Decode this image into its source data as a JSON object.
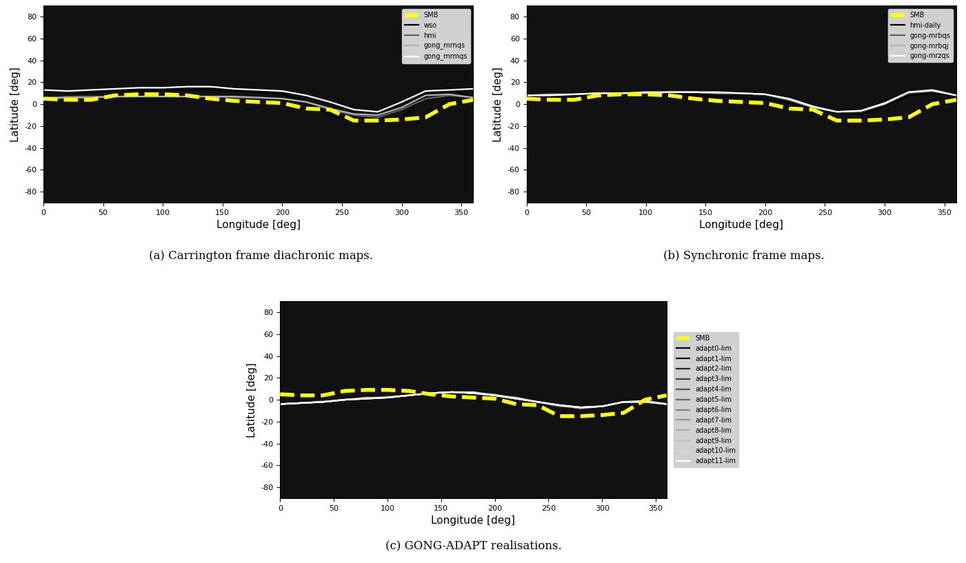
{
  "chart_data": [
    {
      "type": "line",
      "caption": "(a) Carrington frame diachronic maps.",
      "x_label": "Longitude [deg]",
      "y_label": "Latitude [deg]",
      "xlim": [
        0,
        360
      ],
      "ylim": [
        -90,
        90
      ],
      "xticks": [
        0,
        50,
        100,
        150,
        200,
        250,
        300,
        350
      ],
      "yticks": [
        -80,
        -60,
        -40,
        -20,
        0,
        20,
        40,
        60,
        80
      ],
      "legend": "upper right",
      "x": [
        0,
        20,
        40,
        60,
        80,
        100,
        120,
        140,
        160,
        180,
        200,
        220,
        240,
        260,
        280,
        300,
        320,
        340,
        360
      ],
      "series": [
        {
          "name": "SMB",
          "color": "#ffff00",
          "line_style": "dashed",
          "values": [
            5,
            4,
            4,
            8,
            9,
            9,
            8,
            5,
            3,
            2,
            1,
            -4,
            -5,
            -15,
            -15,
            -14,
            -12,
            0,
            4
          ]
        },
        {
          "name": "wso",
          "color": "#000000",
          "line_style": "solid",
          "values": [
            5,
            8,
            11,
            12,
            12,
            13,
            13,
            13,
            12,
            11,
            9,
            3,
            -10,
            -16,
            -17,
            -14,
            10,
            15,
            5
          ]
        },
        {
          "name": "hmi",
          "color": "#606060",
          "line_style": "solid",
          "values": [
            6,
            7,
            7,
            7,
            7,
            7,
            7,
            7,
            6,
            6,
            5,
            2,
            -5,
            -10,
            -12,
            -5,
            5,
            8,
            6
          ]
        },
        {
          "name": "gong_mrnqs",
          "color": "#b0b0b0",
          "line_style": "solid",
          "values": [
            5,
            6,
            6,
            7,
            7,
            7,
            7,
            7,
            7,
            6,
            5,
            2,
            -4,
            -9,
            -10,
            -3,
            8,
            9,
            6
          ]
        },
        {
          "name": "gong_mrmqs",
          "color": "#ffffff",
          "line_style": "solid",
          "values": [
            13,
            12,
            13,
            14,
            15,
            15,
            16,
            16,
            14,
            13,
            12,
            8,
            2,
            -5,
            -7,
            2,
            12,
            13,
            14
          ]
        }
      ]
    },
    {
      "type": "line",
      "caption": "(b) Synchronic frame maps.",
      "x_label": "Longitude [deg]",
      "y_label": "Latitude [deg]",
      "xlim": [
        0,
        360
      ],
      "ylim": [
        -90,
        90
      ],
      "xticks": [
        0,
        50,
        100,
        150,
        200,
        250,
        300,
        350
      ],
      "yticks": [
        -80,
        -60,
        -40,
        -20,
        0,
        20,
        40,
        60,
        80
      ],
      "legend": "upper right",
      "x": [
        0,
        20,
        40,
        60,
        80,
        100,
        120,
        140,
        160,
        180,
        200,
        220,
        240,
        260,
        280,
        300,
        320,
        340,
        360
      ],
      "series": [
        {
          "name": "SMB",
          "color": "#ffff00",
          "line_style": "dashed",
          "values": [
            5,
            4,
            4,
            8,
            9,
            9,
            8,
            5,
            3,
            2,
            1,
            -4,
            -5,
            -15,
            -15,
            -14,
            -12,
            0,
            4
          ]
        },
        {
          "name": "hmi-daily",
          "color": "#000000",
          "line_style": "solid",
          "values": [
            6,
            7,
            7,
            9,
            8,
            8,
            8,
            8,
            7,
            6,
            5,
            1,
            -4,
            -8,
            -9,
            -2,
            8,
            10,
            8
          ]
        },
        {
          "name": "gong-mrbqs",
          "color": "#606060",
          "line_style": "solid",
          "values": [
            8,
            8,
            9,
            10,
            10,
            10,
            11,
            11,
            10,
            10,
            9,
            4,
            -3,
            -7,
            -7,
            0,
            10,
            12,
            8
          ]
        },
        {
          "name": "gong-mrbqj",
          "color": "#b0b0b0",
          "line_style": "solid",
          "values": [
            8,
            9,
            9,
            10,
            10,
            10,
            11,
            11,
            10,
            10,
            9,
            4,
            -3,
            -7,
            -6,
            0,
            11,
            12,
            8
          ]
        },
        {
          "name": "gong-mrzqs",
          "color": "#ffffff",
          "line_style": "solid",
          "values": [
            8,
            8,
            9,
            10,
            10,
            11,
            11,
            11,
            11,
            10,
            9,
            5,
            -2,
            -7,
            -6,
            1,
            11,
            13,
            8
          ]
        }
      ]
    },
    {
      "type": "line",
      "caption": "(c) GONG-ADAPT realisations.",
      "x_label": "Longitude [deg]",
      "y_label": "Latitude [deg]",
      "xlim": [
        0,
        360
      ],
      "ylim": [
        -90,
        90
      ],
      "xticks": [
        0,
        50,
        100,
        150,
        200,
        250,
        300,
        350
      ],
      "yticks": [
        -80,
        -60,
        -40,
        -20,
        0,
        20,
        40,
        60,
        80
      ],
      "legend": "right",
      "x": [
        0,
        20,
        40,
        60,
        80,
        100,
        120,
        140,
        160,
        180,
        200,
        220,
        240,
        260,
        280,
        300,
        320,
        340,
        360
      ],
      "series": [
        {
          "name": "SMB",
          "color": "#ffff00",
          "line_style": "dashed",
          "values": [
            5,
            4,
            4,
            8,
            9,
            9,
            8,
            5,
            3,
            2,
            1,
            -4,
            -5,
            -15,
            -15,
            -14,
            -12,
            0,
            4
          ]
        },
        {
          "name": "adapt0-lim",
          "color": "#000000",
          "line_style": "solid",
          "values": [
            -4,
            -3,
            -2,
            0,
            1,
            2,
            4,
            6,
            7,
            6,
            4,
            1,
            -2,
            -5,
            -7,
            -6,
            -2,
            -2,
            -4
          ]
        },
        {
          "name": "adapt1-lim",
          "color": "#101010",
          "line_style": "solid",
          "values": [
            -4,
            -3,
            -2,
            0,
            1,
            2,
            4,
            6,
            7,
            6,
            4,
            1,
            -2,
            -5,
            -7,
            -6,
            -3,
            -2,
            -4
          ]
        },
        {
          "name": "adapt2-lim",
          "color": "#2a2a2a",
          "line_style": "solid",
          "values": [
            -3,
            -3,
            -2,
            0,
            1,
            2,
            4,
            6,
            7,
            6,
            4,
            1,
            -2,
            -5,
            -7,
            -6,
            -2,
            -2,
            -3
          ]
        },
        {
          "name": "adapt3-lim",
          "color": "#404040",
          "line_style": "solid",
          "values": [
            -4,
            -3,
            -1,
            0,
            1,
            2,
            4,
            6,
            7,
            6,
            4,
            1,
            -2,
            -5,
            -7,
            -6,
            -2,
            -2,
            -4
          ]
        },
        {
          "name": "adapt4-lim",
          "color": "#555555",
          "line_style": "solid",
          "values": [
            -4,
            -3,
            -2,
            0,
            1,
            3,
            4,
            6,
            7,
            6,
            4,
            1,
            -2,
            -5,
            -7,
            -6,
            -2,
            -2,
            -4
          ]
        },
        {
          "name": "adapt5-lim",
          "color": "#6a6a6a",
          "line_style": "solid",
          "values": [
            -4,
            -3,
            -2,
            0,
            1,
            2,
            4,
            6,
            7,
            6,
            4,
            1,
            -2,
            -6,
            -7,
            -6,
            -2,
            -2,
            -4
          ]
        },
        {
          "name": "adapt6-lim",
          "color": "#808080",
          "line_style": "solid",
          "values": [
            -4,
            -3,
            -2,
            0,
            1,
            2,
            4,
            6,
            7,
            6,
            5,
            1,
            -2,
            -5,
            -7,
            -6,
            -2,
            -2,
            -4
          ]
        },
        {
          "name": "adapt7-lim",
          "color": "#959595",
          "line_style": "solid",
          "values": [
            -4,
            -3,
            -2,
            0,
            1,
            2,
            4,
            6,
            7,
            6,
            4,
            1,
            -2,
            -5,
            -8,
            -6,
            -2,
            -2,
            -4
          ]
        },
        {
          "name": "adapt8-lim",
          "color": "#aaaaaa",
          "line_style": "solid",
          "values": [
            -4,
            -3,
            -2,
            0,
            2,
            2,
            4,
            6,
            7,
            6,
            4,
            1,
            -2,
            -5,
            -7,
            -6,
            -2,
            -2,
            -4
          ]
        },
        {
          "name": "adapt9-lim",
          "color": "#c0c0c0",
          "line_style": "solid",
          "values": [
            -4,
            -3,
            -2,
            0,
            1,
            2,
            4,
            6,
            7,
            6,
            4,
            2,
            -2,
            -5,
            -7,
            -6,
            -2,
            -2,
            -4
          ]
        },
        {
          "name": "adapt10-lim",
          "color": "#d5d5d5",
          "line_style": "solid",
          "values": [
            -4,
            -3,
            -2,
            0,
            1,
            2,
            4,
            6,
            7,
            7,
            4,
            1,
            -2,
            -5,
            -7,
            -6,
            -2,
            -2,
            -4
          ]
        },
        {
          "name": "adapt11-lim",
          "color": "#ffffff",
          "line_style": "solid",
          "values": [
            -4,
            -3,
            -2,
            0,
            1,
            2,
            4,
            6,
            7,
            6,
            4,
            1,
            -2,
            -5,
            -7,
            -6,
            -2,
            -1,
            -4
          ]
        }
      ]
    }
  ]
}
